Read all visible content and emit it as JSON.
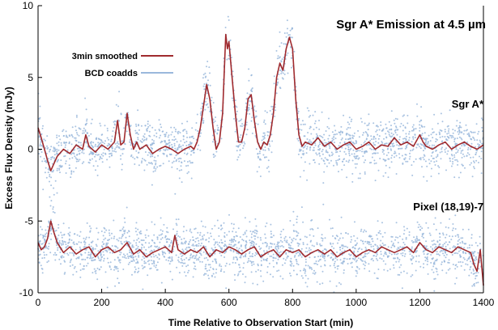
{
  "chart_data": {
    "type": "scatter",
    "title": "Sgr A* Emission at 4.5 µm",
    "xlabel": "Time Relative to Observation Start (min)",
    "ylabel": "Excess Flux Density (mJy)",
    "xlim": [
      0,
      1400
    ],
    "ylim": [
      -10,
      10
    ],
    "xticks": [
      0,
      200,
      400,
      600,
      800,
      1000,
      1200,
      1400
    ],
    "yticks": [
      -10,
      -5,
      0,
      5,
      10
    ],
    "grid": false,
    "legend_position": "top-left",
    "annotations": {
      "sgr": "Sgr A*",
      "pixel": "Pixel (18,19)-7"
    },
    "series": [
      {
        "name": "3min smoothed",
        "kind": "line",
        "color": "#a02a2e",
        "curves": [
          {
            "label": "Sgr A*",
            "x": [
              0,
              10,
              20,
              30,
              40,
              50,
              60,
              80,
              100,
              120,
              140,
              150,
              160,
              180,
              200,
              220,
              240,
              250,
              260,
              270,
              280,
              290,
              300,
              310,
              320,
              340,
              360,
              380,
              400,
              420,
              440,
              460,
              480,
              490,
              500,
              510,
              520,
              530,
              540,
              550,
              560,
              570,
              580,
              590,
              595,
              600,
              610,
              620,
              630,
              640,
              650,
              660,
              670,
              680,
              690,
              700,
              710,
              720,
              730,
              740,
              750,
              760,
              770,
              780,
              790,
              800,
              810,
              820,
              830,
              840,
              860,
              880,
              900,
              920,
              940,
              960,
              980,
              1000,
              1020,
              1040,
              1060,
              1080,
              1100,
              1120,
              1140,
              1160,
              1180,
              1200,
              1210,
              1220,
              1240,
              1260,
              1280,
              1300,
              1320,
              1340,
              1360,
              1380,
              1400
            ],
            "y": [
              1.5,
              0.8,
              0.0,
              -0.8,
              -1.5,
              -1.0,
              -0.5,
              0.0,
              -0.3,
              0.3,
              0.0,
              1.0,
              0.2,
              -0.2,
              0.3,
              0.0,
              0.5,
              2.0,
              0.3,
              0.5,
              2.5,
              1.0,
              0.0,
              0.5,
              0.0,
              0.3,
              -0.3,
              0.0,
              0.2,
              0.0,
              -0.3,
              0.0,
              0.2,
              0.0,
              0.5,
              1.5,
              3.0,
              4.5,
              3.5,
              1.5,
              0.0,
              0.5,
              2.5,
              8.0,
              7.0,
              7.5,
              5.0,
              2.5,
              0.5,
              0.5,
              1.5,
              3.5,
              3.8,
              2.0,
              0.5,
              0.0,
              0.5,
              0.3,
              1.0,
              2.5,
              5.0,
              6.0,
              5.5,
              7.0,
              7.8,
              7.0,
              3.5,
              1.0,
              0.2,
              0.5,
              0.3,
              0.8,
              0.2,
              0.5,
              0.0,
              0.3,
              0.5,
              0.0,
              0.2,
              0.5,
              0.0,
              0.3,
              0.2,
              0.8,
              0.3,
              0.5,
              0.2,
              1.0,
              0.5,
              0.2,
              0.0,
              0.3,
              0.5,
              0.0,
              0.3,
              0.5,
              0.2,
              0.0,
              0.3
            ]
          },
          {
            "label": "Pixel (18,19)-7",
            "x": [
              0,
              10,
              20,
              30,
              40,
              50,
              60,
              80,
              100,
              120,
              140,
              160,
              180,
              200,
              220,
              240,
              260,
              280,
              300,
              320,
              340,
              360,
              380,
              400,
              420,
              430,
              440,
              460,
              480,
              500,
              520,
              540,
              560,
              580,
              600,
              620,
              640,
              660,
              680,
              700,
              720,
              740,
              760,
              780,
              800,
              820,
              840,
              860,
              880,
              900,
              920,
              940,
              960,
              980,
              1000,
              1020,
              1040,
              1060,
              1080,
              1100,
              1120,
              1140,
              1160,
              1180,
              1200,
              1220,
              1240,
              1260,
              1280,
              1300,
              1320,
              1340,
              1360,
              1370,
              1380,
              1390,
              1400
            ],
            "y": [
              -6.5,
              -7.0,
              -6.8,
              -6.2,
              -5.0,
              -5.8,
              -6.5,
              -7.2,
              -6.8,
              -7.3,
              -7.0,
              -6.8,
              -7.5,
              -7.0,
              -6.8,
              -7.2,
              -7.0,
              -6.5,
              -7.3,
              -7.0,
              -7.5,
              -7.2,
              -7.0,
              -6.8,
              -7.2,
              -6.0,
              -7.0,
              -7.3,
              -7.0,
              -7.2,
              -6.8,
              -7.5,
              -7.0,
              -7.2,
              -6.8,
              -7.0,
              -7.3,
              -7.0,
              -6.8,
              -7.5,
              -7.2,
              -7.0,
              -7.5,
              -7.0,
              -7.2,
              -7.0,
              -7.5,
              -7.2,
              -7.0,
              -7.3,
              -7.0,
              -7.5,
              -7.2,
              -7.0,
              -7.5,
              -7.2,
              -7.0,
              -7.2,
              -6.8,
              -7.0,
              -7.2,
              -7.0,
              -6.8,
              -7.2,
              -6.5,
              -7.0,
              -7.2,
              -6.8,
              -7.0,
              -7.2,
              -6.8,
              -7.0,
              -7.2,
              -8.0,
              -8.5,
              -7.0,
              -9.5
            ]
          }
        ]
      },
      {
        "name": "BCD coadds",
        "kind": "scatter",
        "color": "#9ab8dc",
        "note": "dense per-frame points scattered about the smoothed curves"
      }
    ]
  }
}
